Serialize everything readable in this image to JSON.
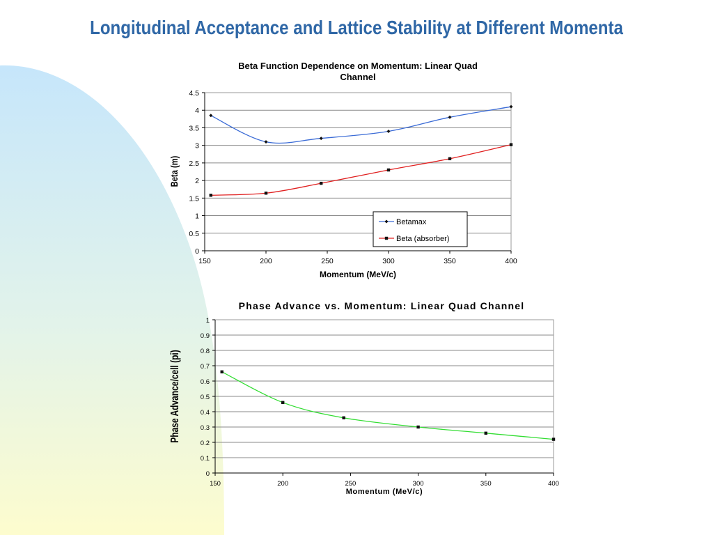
{
  "slide": {
    "title": "Longitudinal Acceptance and Lattice Stability at Different Momenta"
  },
  "colors": {
    "title": "#2f67a6",
    "betamax": "#3a6bd6",
    "beta_absorber": "#e02020",
    "phase": "#33dd33",
    "bg_blue": "#cfe9fb",
    "bg_yellow": "#fdfccf"
  },
  "chart_data": [
    {
      "type": "line",
      "title": "Beta Function Dependence on Momentum: Linear Quad Channel",
      "xlabel": "Momentum (MeV/c)",
      "ylabel": "Beta (m)",
      "xlim": [
        150,
        400
      ],
      "ylim": [
        0,
        4.5
      ],
      "x_ticks": [
        150,
        200,
        250,
        300,
        350,
        400
      ],
      "y_ticks": [
        0,
        0.5,
        1,
        1.5,
        2,
        2.5,
        3,
        3.5,
        4,
        4.5
      ],
      "grid": true,
      "legend_position": "bottom-right",
      "series": [
        {
          "name": "Betamax",
          "marker": "diamond",
          "x": [
            155,
            200,
            245,
            300,
            350,
            400
          ],
          "values": [
            3.85,
            3.1,
            3.2,
            3.4,
            3.8,
            4.1
          ]
        },
        {
          "name": "Beta (absorber)",
          "marker": "square",
          "x": [
            155,
            200,
            245,
            300,
            350,
            400
          ],
          "values": [
            1.58,
            1.64,
            1.92,
            2.3,
            2.62,
            3.02
          ]
        }
      ]
    },
    {
      "type": "line",
      "title": "Phase Advance vs. Momentum: Linear Quad Channel",
      "xlabel": "Momentum (MeV/c)",
      "ylabel": "Phase Advance/cell (pi)",
      "xlim": [
        150,
        400
      ],
      "ylim": [
        0,
        1
      ],
      "x_ticks": [
        150,
        200,
        250,
        300,
        350,
        400
      ],
      "y_ticks": [
        0,
        0.1,
        0.2,
        0.3,
        0.4,
        0.5,
        0.6,
        0.7,
        0.8,
        0.9,
        1
      ],
      "grid": true,
      "series": [
        {
          "marker": "square",
          "x": [
            155,
            200,
            245,
            300,
            350,
            400
          ],
          "values": [
            0.66,
            0.46,
            0.36,
            0.3,
            0.26,
            0.22
          ]
        }
      ]
    }
  ]
}
